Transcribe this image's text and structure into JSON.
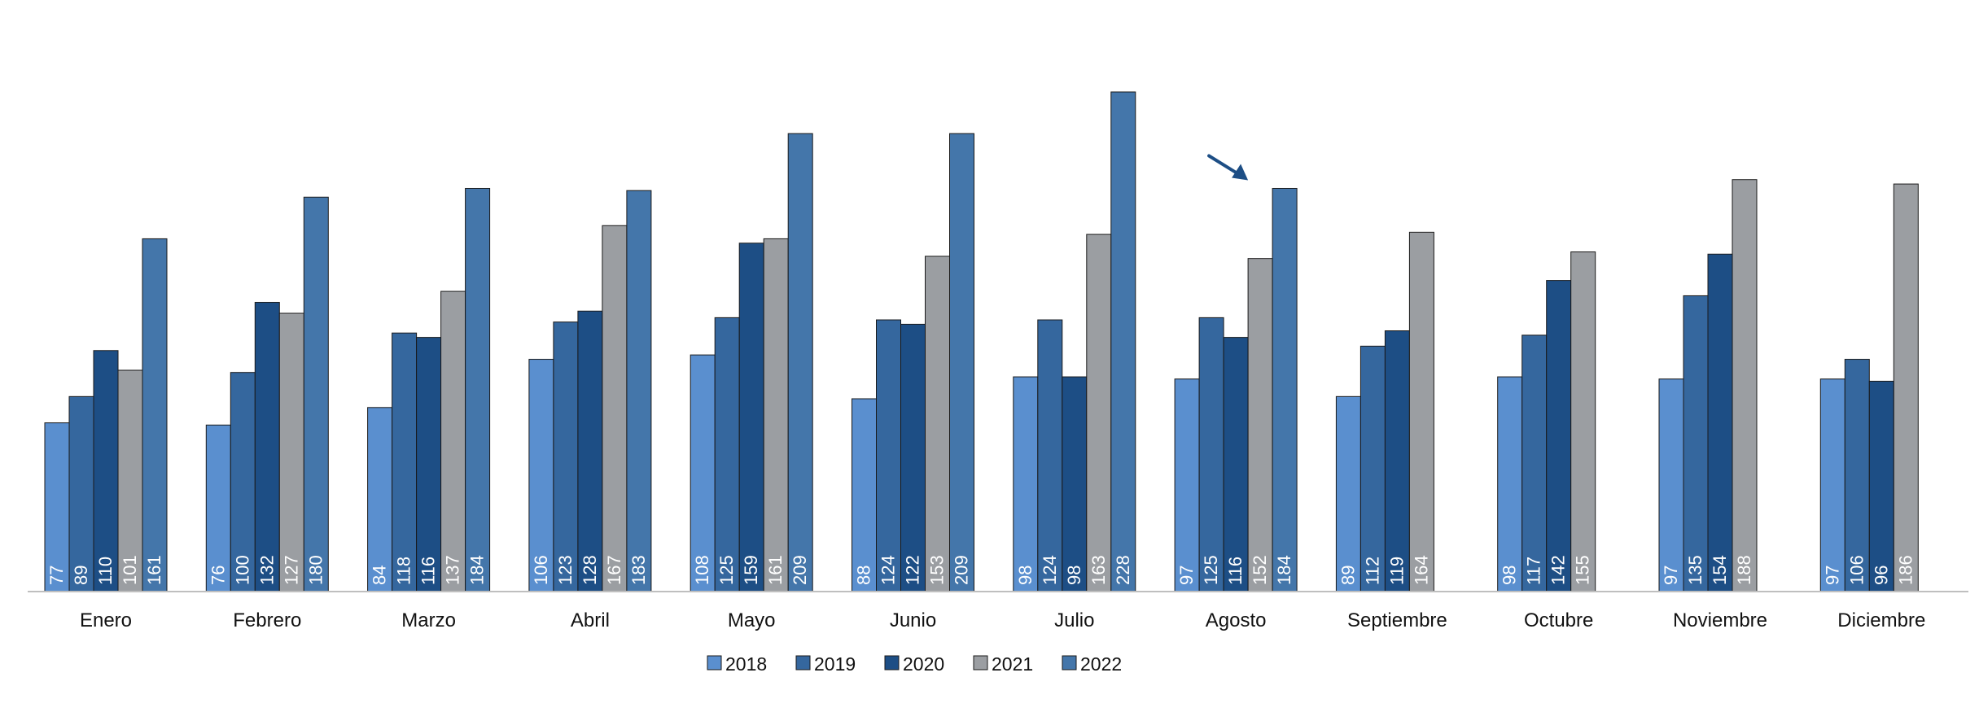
{
  "chart_data": {
    "type": "bar",
    "categories": [
      "Enero",
      "Febrero",
      "Marzo",
      "Abril",
      "Mayo",
      "Junio",
      "Julio",
      "Agosto",
      "Septiembre",
      "Octubre",
      "Noviembre",
      "Diciembre"
    ],
    "series": [
      {
        "name": "2018",
        "color": "#5a8fcf",
        "values": [
          77,
          76,
          84,
          106,
          108,
          88,
          98,
          97,
          89,
          98,
          97,
          97
        ]
      },
      {
        "name": "2019",
        "color": "#35679e",
        "values": [
          89,
          100,
          118,
          123,
          125,
          124,
          124,
          125,
          112,
          117,
          135,
          106
        ]
      },
      {
        "name": "2020",
        "color": "#1d4e85",
        "values": [
          110,
          132,
          116,
          128,
          159,
          122,
          98,
          116,
          119,
          142,
          154,
          96
        ]
      },
      {
        "name": "2021",
        "color": "#9b9ea2",
        "values": [
          101,
          127,
          137,
          167,
          161,
          153,
          163,
          152,
          164,
          155,
          188,
          186
        ]
      },
      {
        "name": "2022",
        "color": "#4476aa",
        "values": [
          161,
          180,
          184,
          183,
          209,
          209,
          228,
          184,
          null,
          null,
          null,
          null
        ]
      }
    ],
    "ylim": [
      0,
      240
    ],
    "grid": false,
    "legend_position": "bottom-center",
    "annotation": {
      "type": "arrow",
      "category": "Agosto",
      "color": "#1d4e85"
    }
  }
}
